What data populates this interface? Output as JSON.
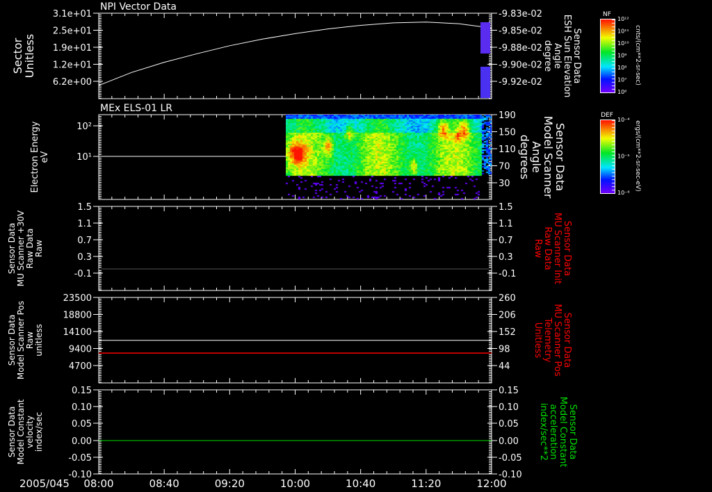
{
  "colors": {
    "bg": "#000000",
    "axis": "#ffffff",
    "red": "#ff0000",
    "green": "#00e000",
    "gray": "#555555"
  },
  "time_axis": {
    "date": "2005/045",
    "labels": [
      "08:00",
      "08:40",
      "09:20",
      "10:00",
      "10:40",
      "11:20",
      "12:00"
    ]
  },
  "chart_data": [
    {
      "type": "line",
      "title": "NPI Vector Data",
      "ylabel": [
        "Sector",
        "Unitless"
      ],
      "ylim": [
        0,
        31
      ],
      "yticks": [
        "3.1e+01",
        "2.5e+01",
        "1.9e+01",
        "1.2e+01",
        "6.2e+00"
      ],
      "y2label": [
        "Sensor Data",
        "ESH Sun Elevation",
        "Angle",
        "degree"
      ],
      "y2ticks": [
        "-9.83e-02",
        "-9.85e-02",
        "-9.88e-02",
        "-9.90e-02",
        "-9.92e-02"
      ],
      "series": [
        {
          "name": "Sector",
          "color": "#ffffff",
          "x_minutes": [
            0,
            20,
            40,
            60,
            80,
            100,
            120,
            140,
            160,
            180,
            200,
            220,
            240
          ],
          "values": [
            4.8,
            9.5,
            13.2,
            16.3,
            19.2,
            21.6,
            23.6,
            25.3,
            26.6,
            27.5,
            27.8,
            27.2,
            25.6
          ]
        }
      ],
      "colorbar": {
        "label": "NF",
        "ticks": [
          "10¹²",
          "10¹¹",
          "10¹⁰",
          "10⁹",
          "10⁸",
          "10⁷",
          "10⁶"
        ],
        "units": "cnts/(cm**2-sr-sec)"
      }
    },
    {
      "type": "heatmap",
      "title": "MEx ELS-01 LR",
      "ylabel": [
        "Electron Energy",
        "eV"
      ],
      "yscale": "log",
      "yticks": [
        "10²",
        "10¹"
      ],
      "y2label": [
        "Sensor Data",
        "Model Scanner",
        "Angle",
        "degrees"
      ],
      "y2ticks": [
        "190",
        "150",
        "110",
        "70",
        "30"
      ],
      "data_start": "09:54",
      "data_end": "12:00",
      "series": [
        {
          "name": "Model Scanner Angle",
          "color": "#ffffff",
          "value": 90
        }
      ],
      "colorbar": {
        "label": "DEF",
        "ticks": [
          "10⁻⁴",
          "10⁻⁵",
          "10⁻⁶"
        ],
        "units": "ergs/(cm**2-sr-sec-eV)"
      }
    },
    {
      "type": "line",
      "title": "",
      "ylabel": [
        "Sensor Data",
        "MU Scanner +30V",
        "Raw Data",
        "Raw"
      ],
      "ylim": [
        -0.5,
        1.5
      ],
      "yticks": [
        "1.5",
        "1.1",
        "0.7",
        "0.3",
        "-0.1"
      ],
      "y2label": [
        "Sensor Data",
        "MU Scanner Init",
        "Raw Data",
        "Raw"
      ],
      "y2ticks": [
        "1.5",
        "1.1",
        "0.7",
        "0.3",
        "-0.1"
      ],
      "series": [
        {
          "name": "MU Scanner Init",
          "color": "#555555",
          "value": 0.0
        }
      ]
    },
    {
      "type": "line",
      "title": "",
      "ylabel": [
        "Sensor Data",
        "Model Scanner Pos",
        "Raw",
        "unitless"
      ],
      "ylim": [
        0,
        23500
      ],
      "yticks": [
        "23500",
        "18800",
        "14100",
        "9400",
        "4700"
      ],
      "y2label": [
        "Sensor Data",
        "MU Scanner Pos",
        "Telemetry",
        "Unitless"
      ],
      "y2ticks": [
        "260",
        "206",
        "152",
        "98",
        "44"
      ],
      "series": [
        {
          "name": "Model Scanner Pos",
          "color": "#ffffff",
          "value": 11700
        },
        {
          "name": "MU Scanner Pos",
          "color": "#ff0000",
          "value": 8200
        }
      ]
    },
    {
      "type": "line",
      "title": "",
      "ylabel": [
        "Sensor Data",
        "Model Constant",
        "velocity",
        "index/sec"
      ],
      "ylim": [
        -0.1,
        0.15
      ],
      "yticks": [
        "0.15",
        "0.10",
        "0.05",
        "0.00",
        "-0.05",
        "-0.10"
      ],
      "y2label": [
        "Sensor Data",
        "Model Constant",
        "acceleration",
        "index/sec**2"
      ],
      "y2ticks": [
        "0.15",
        "0.10",
        "0.05",
        "0.00",
        "-0.05",
        "-0.10"
      ],
      "series": [
        {
          "name": "Model Constant",
          "color": "#00e000",
          "value": 0.0
        }
      ]
    }
  ]
}
